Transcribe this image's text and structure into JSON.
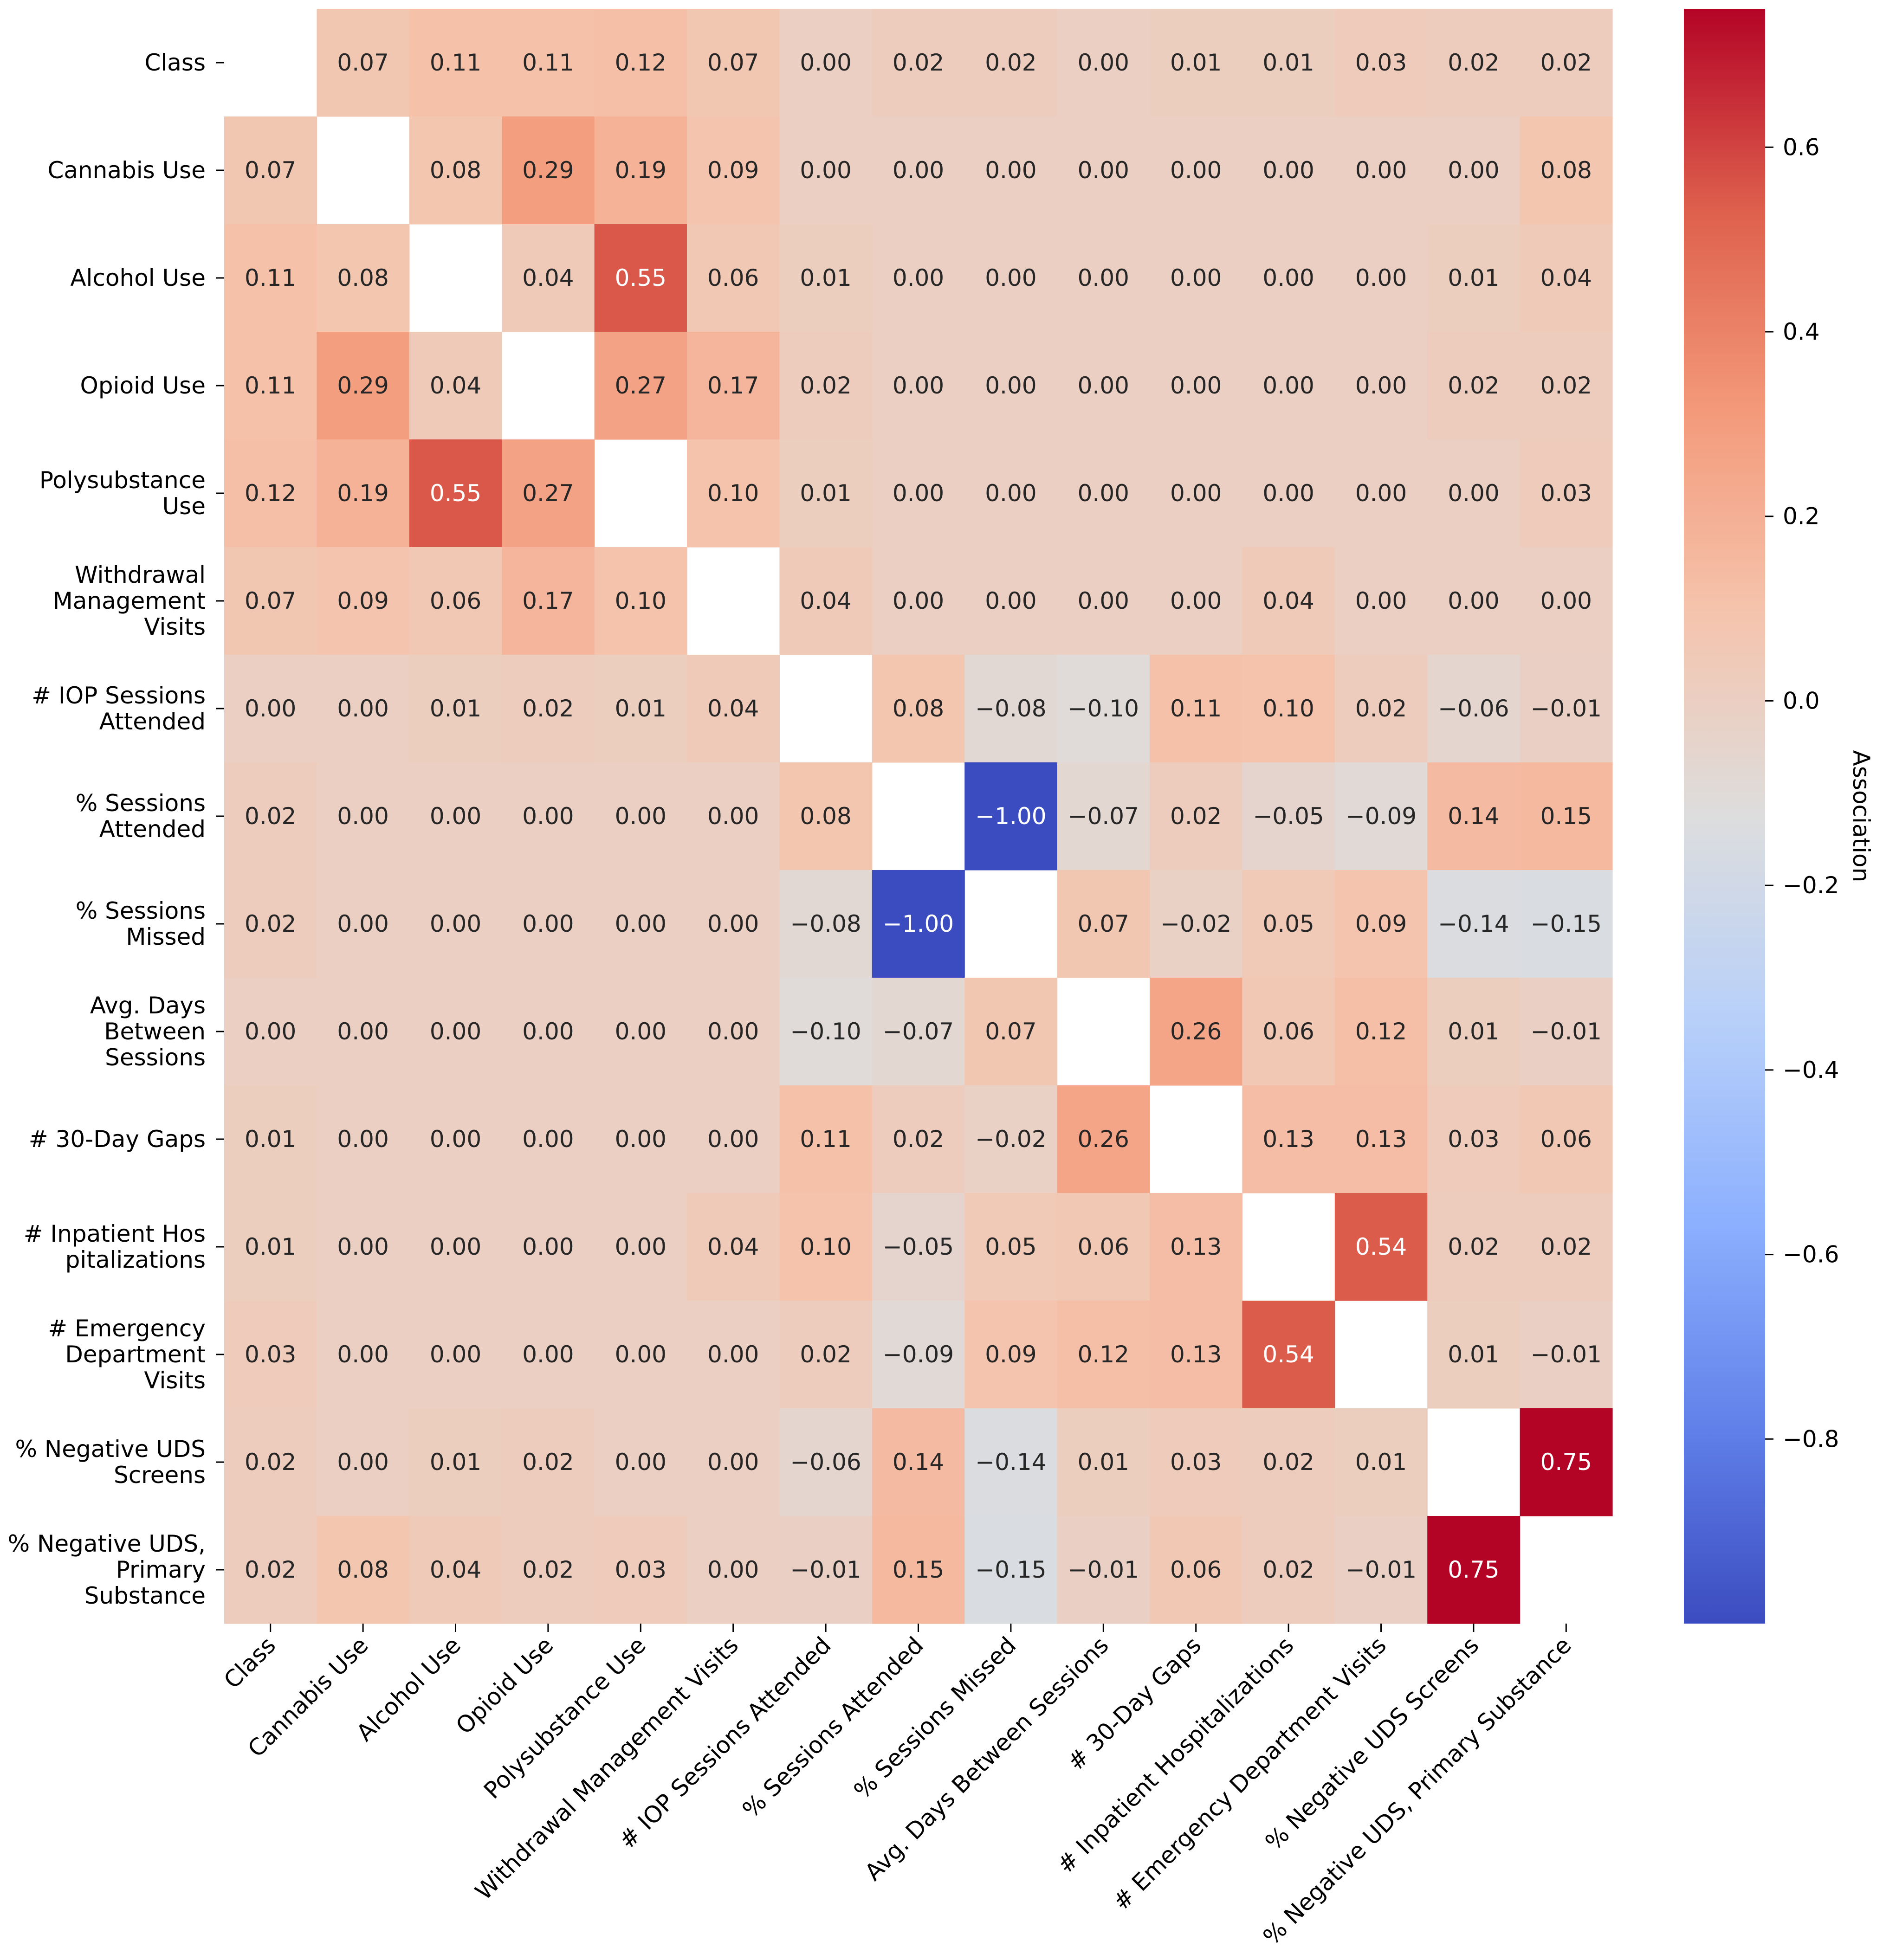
{
  "chart_data": {
    "type": "heatmap",
    "title": "",
    "xlabel": "",
    "ylabel": "",
    "row_labels": [
      [
        "Class"
      ],
      [
        "Cannabis Use"
      ],
      [
        "Alcohol Use"
      ],
      [
        "Opioid Use"
      ],
      [
        "Polysubstance",
        "Use"
      ],
      [
        "Withdrawal",
        "Management",
        "Visits"
      ],
      [
        "# IOP Sessions",
        "Attended"
      ],
      [
        "% Sessions",
        "Attended"
      ],
      [
        "% Sessions",
        "Missed"
      ],
      [
        "Avg. Days",
        "Between",
        "Sessions"
      ],
      [
        "# 30-Day Gaps"
      ],
      [
        "# Inpatient Hos",
        "pitalizations"
      ],
      [
        "# Emergency",
        "Department",
        "Visits"
      ],
      [
        "% Negative UDS",
        "Screens"
      ],
      [
        "% Negative UDS,",
        "Primary",
        "Substance"
      ]
    ],
    "column_labels": [
      "Class",
      "Cannabis Use",
      "Alcohol Use",
      "Opioid Use",
      "Polysubstance Use",
      "Withdrawal Management Visits",
      "# IOP Sessions Attended",
      "% Sessions Attended",
      "% Sessions Missed",
      "Avg. Days Between Sessions",
      "# 30-Day Gaps",
      "# Inpatient Hospitalizations",
      "# Emergency Department Visits",
      "% Negative UDS Screens",
      "% Negative UDS, Primary Substance"
    ],
    "values": [
      [
        null,
        0.07,
        0.11,
        0.11,
        0.12,
        0.07,
        0.0,
        0.02,
        0.02,
        0.0,
        0.01,
        0.01,
        0.03,
        0.02,
        0.02
      ],
      [
        0.07,
        null,
        0.08,
        0.29,
        0.19,
        0.09,
        0.0,
        0.0,
        0.0,
        0.0,
        0.0,
        0.0,
        0.0,
        0.0,
        0.08
      ],
      [
        0.11,
        0.08,
        null,
        0.04,
        0.55,
        0.06,
        0.01,
        0.0,
        0.0,
        0.0,
        0.0,
        0.0,
        0.0,
        0.01,
        0.04
      ],
      [
        0.11,
        0.29,
        0.04,
        null,
        0.27,
        0.17,
        0.02,
        0.0,
        0.0,
        0.0,
        0.0,
        0.0,
        0.0,
        0.02,
        0.02
      ],
      [
        0.12,
        0.19,
        0.55,
        0.27,
        null,
        0.1,
        0.01,
        0.0,
        0.0,
        0.0,
        0.0,
        0.0,
        0.0,
        0.0,
        0.03
      ],
      [
        0.07,
        0.09,
        0.06,
        0.17,
        0.1,
        null,
        0.04,
        0.0,
        0.0,
        0.0,
        0.0,
        0.04,
        0.0,
        0.0,
        0.0
      ],
      [
        0.0,
        0.0,
        0.01,
        0.02,
        0.01,
        0.04,
        null,
        0.08,
        -0.08,
        -0.1,
        0.11,
        0.1,
        0.02,
        -0.06,
        -0.01
      ],
      [
        0.02,
        0.0,
        0.0,
        0.0,
        0.0,
        0.0,
        0.08,
        null,
        -1.0,
        -0.07,
        0.02,
        -0.05,
        -0.09,
        0.14,
        0.15
      ],
      [
        0.02,
        0.0,
        0.0,
        0.0,
        0.0,
        0.0,
        -0.08,
        -1.0,
        null,
        0.07,
        -0.02,
        0.05,
        0.09,
        -0.14,
        -0.15
      ],
      [
        0.0,
        0.0,
        0.0,
        0.0,
        0.0,
        0.0,
        -0.1,
        -0.07,
        0.07,
        null,
        0.26,
        0.06,
        0.12,
        0.01,
        -0.01
      ],
      [
        0.01,
        0.0,
        0.0,
        0.0,
        0.0,
        0.0,
        0.11,
        0.02,
        -0.02,
        0.26,
        null,
        0.13,
        0.13,
        0.03,
        0.06
      ],
      [
        0.01,
        0.0,
        0.0,
        0.0,
        0.0,
        0.04,
        0.1,
        -0.05,
        0.05,
        0.06,
        0.13,
        null,
        0.54,
        0.02,
        0.02
      ],
      [
        0.03,
        0.0,
        0.0,
        0.0,
        0.0,
        0.0,
        0.02,
        -0.09,
        0.09,
        0.12,
        0.13,
        0.54,
        null,
        0.01,
        -0.01
      ],
      [
        0.02,
        0.0,
        0.01,
        0.02,
        0.0,
        0.0,
        -0.06,
        0.14,
        -0.14,
        0.01,
        0.03,
        0.02,
        0.01,
        null,
        0.75
      ],
      [
        0.02,
        0.08,
        0.04,
        0.02,
        0.03,
        0.0,
        -0.01,
        0.15,
        -0.15,
        -0.01,
        0.06,
        0.02,
        -0.01,
        0.75,
        null
      ]
    ],
    "colormap": "coolwarm",
    "color_range": [
      -1.0,
      0.75
    ],
    "colorbar": {
      "label": "Association",
      "ticks": [
        0.6,
        0.4,
        0.2,
        0.0,
        -0.2,
        -0.4,
        -0.6,
        -0.8
      ]
    }
  }
}
